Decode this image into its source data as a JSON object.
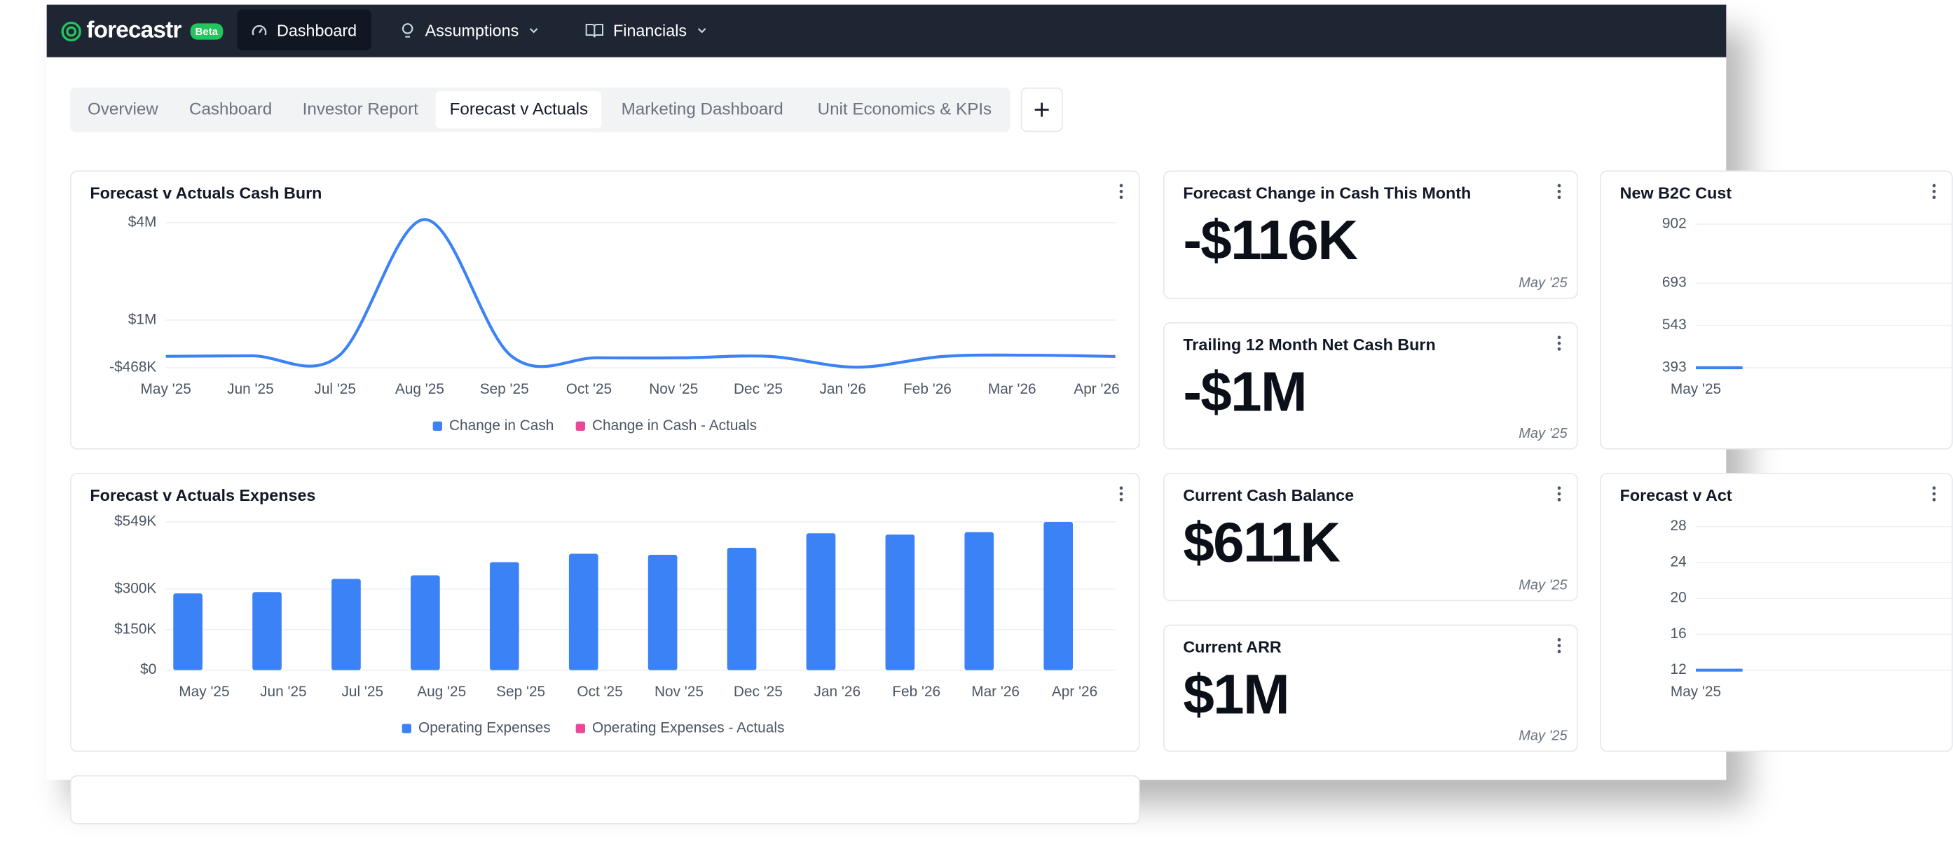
{
  "header": {
    "brand": "forecastr",
    "badge": "Beta",
    "nav": [
      "Dashboard",
      "Assumptions",
      "Financials"
    ]
  },
  "tabs": [
    "Overview",
    "Cashboard",
    "Investor Report",
    "Forecast v Actuals",
    "Marketing Dashboard",
    "Unit Economics & KPIs"
  ],
  "kpis": [
    {
      "title": "Forecast Change in Cash This Month",
      "value": "-$116K",
      "date": "May '25"
    },
    {
      "title": "Trailing 12 Month Net Cash Burn",
      "value": "-$1M",
      "date": "May '25"
    },
    {
      "title": "Current Cash Balance",
      "value": "$611K",
      "date": "May '25"
    },
    {
      "title": "Current ARR",
      "value": "$1M",
      "date": "May '25"
    }
  ],
  "chart_data": [
    {
      "type": "line",
      "title": "Forecast v Actuals Cash Burn",
      "categories": [
        "May '25",
        "Jun '25",
        "Jul '25",
        "Aug '25",
        "Sep '25",
        "Oct '25",
        "Nov '25",
        "Dec '25",
        "Jan '26",
        "Feb '26",
        "Mar '26",
        "Apr '26"
      ],
      "series": [
        {
          "name": "Change in Cash",
          "color": "#3b82f6",
          "values": [
            -116000,
            -100000,
            -110000,
            4100000,
            -100000,
            -160000,
            -160000,
            -120000,
            -450000,
            -120000,
            -80000,
            -120000
          ]
        },
        {
          "name": "Change in Cash - Actuals",
          "color": "#ec4899",
          "values": [
            null,
            null,
            null,
            null,
            null,
            null,
            null,
            null,
            null,
            null,
            null,
            null
          ]
        }
      ],
      "ylim": [
        -468000,
        4100000
      ],
      "yticks": [
        {
          "value": 4000000,
          "label": "$4M"
        },
        {
          "value": 1000000,
          "label": "$1M"
        },
        {
          "value": -468000,
          "label": "-$468K"
        }
      ],
      "grid": true,
      "legend": "bottom"
    },
    {
      "type": "bar",
      "title": "Forecast v Actuals Expenses",
      "categories": [
        "May '25",
        "Jun '25",
        "Jul '25",
        "Aug '25",
        "Sep '25",
        "Oct '25",
        "Nov '25",
        "Dec '25",
        "Jan '26",
        "Feb '26",
        "Mar '26",
        "Apr '26"
      ],
      "series": [
        {
          "name": "Operating Expenses",
          "color": "#3b82f6",
          "values": [
            284000,
            289000,
            338000,
            351000,
            400000,
            431000,
            427000,
            453000,
            507000,
            502000,
            511000,
            549000
          ]
        },
        {
          "name": "Operating Expenses - Actuals",
          "color": "#ec4899",
          "values": [
            null,
            null,
            null,
            null,
            null,
            null,
            null,
            null,
            null,
            null,
            null,
            null
          ]
        }
      ],
      "ylim": [
        0,
        549000
      ],
      "yticks": [
        {
          "value": 549000,
          "label": "$549K"
        },
        {
          "value": 300000,
          "label": "$300K"
        },
        {
          "value": 150000,
          "label": "$150K"
        },
        {
          "value": 0,
          "label": "$0"
        }
      ],
      "grid": true,
      "legend": "bottom"
    },
    {
      "type": "line",
      "title": "New B2C Cust",
      "categories": [
        "May '25"
      ],
      "series": [
        {
          "color": "#3b82f6",
          "values": [
            393
          ]
        }
      ],
      "ylim": [
        393,
        902
      ],
      "yticks": [
        902,
        693,
        543,
        393
      ],
      "grid": true
    },
    {
      "type": "line",
      "title": "Forecast v Act",
      "categories": [
        "May '25"
      ],
      "series": [
        {
          "color": "#3b82f6",
          "values": [
            12
          ]
        }
      ],
      "ylim": [
        12,
        28
      ],
      "yticks": [
        28,
        24,
        20,
        16,
        12
      ],
      "grid": true
    }
  ]
}
